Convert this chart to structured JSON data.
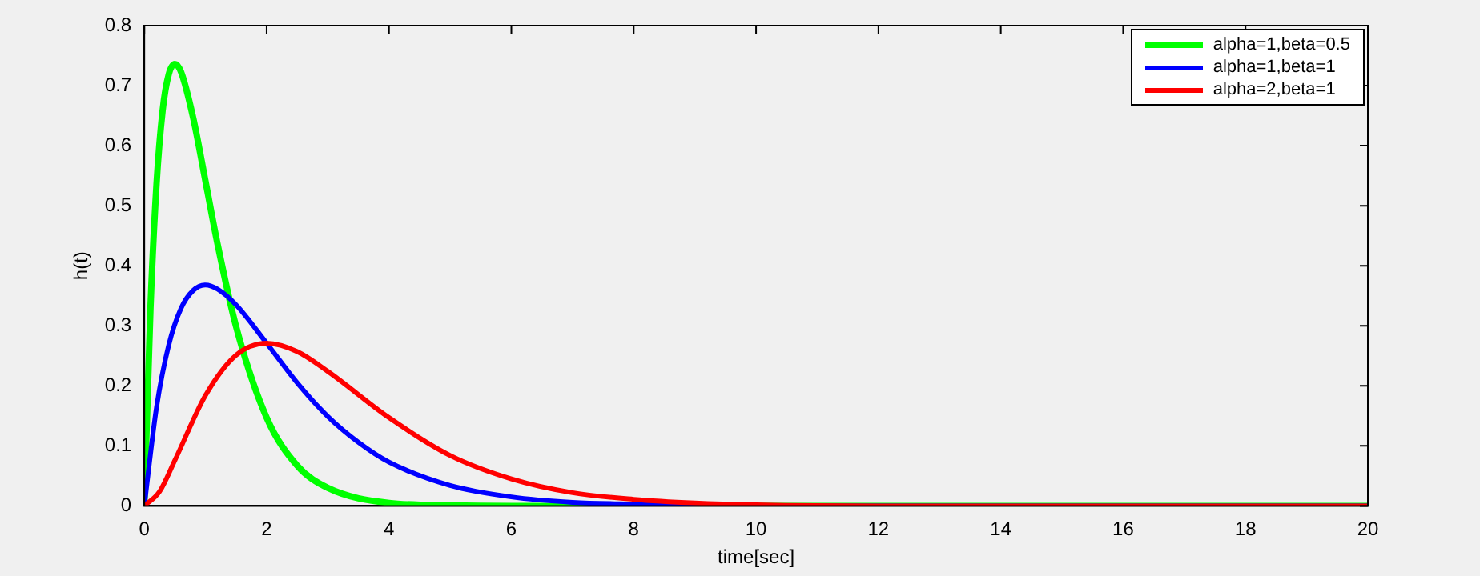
{
  "chart_data": {
    "type": "line",
    "xlabel": "time[sec]",
    "ylabel": "h(t)",
    "xlim": [
      0,
      20
    ],
    "xticks": [
      0,
      2,
      4,
      6,
      8,
      10,
      12,
      14,
      16,
      18,
      20
    ],
    "ylim": [
      0,
      0.8
    ],
    "yticks": [
      0,
      0.1,
      0.2,
      0.3,
      0.4,
      0.5,
      0.6,
      0.7,
      0.8
    ],
    "grid": false,
    "legend": "top right",
    "marker": "none",
    "line_style": "solid",
    "series": [
      {
        "name": "alpha=1,beta=0.5",
        "color": "#00ff00",
        "x": [
          0,
          0.1,
          0.2,
          0.3,
          0.4,
          0.5,
          0.6,
          0.8,
          1,
          1.2,
          1.5,
          2,
          2.5,
          3,
          4,
          5,
          6,
          8,
          10,
          20
        ],
        "values": [
          0,
          0.327,
          0.536,
          0.659,
          0.719,
          0.736,
          0.723,
          0.646,
          0.541,
          0.435,
          0.299,
          0.147,
          0.067,
          0.03,
          0.005,
          0.001,
          0,
          0,
          0,
          0
        ]
      },
      {
        "name": "alpha=1,beta=1",
        "color": "#0000ff",
        "x": [
          0,
          0.2,
          0.4,
          0.6,
          0.8,
          1,
          1.2,
          1.5,
          2,
          2.5,
          3,
          3.5,
          4,
          5,
          6,
          7,
          8,
          10,
          20
        ],
        "values": [
          0,
          0.164,
          0.268,
          0.329,
          0.359,
          0.368,
          0.361,
          0.335,
          0.271,
          0.205,
          0.149,
          0.106,
          0.073,
          0.034,
          0.015,
          0.006,
          0.003,
          0,
          0
        ]
      },
      {
        "name": "alpha=2,beta=1",
        "color": "#ff0000",
        "x": [
          0,
          0.25,
          0.5,
          1,
          1.5,
          2,
          2.5,
          3,
          4,
          5,
          6,
          7,
          8,
          9,
          10,
          12,
          20
        ],
        "values": [
          0,
          0.024,
          0.076,
          0.184,
          0.251,
          0.271,
          0.257,
          0.224,
          0.147,
          0.084,
          0.045,
          0.022,
          0.011,
          0.005,
          0.002,
          0,
          0
        ]
      }
    ]
  }
}
